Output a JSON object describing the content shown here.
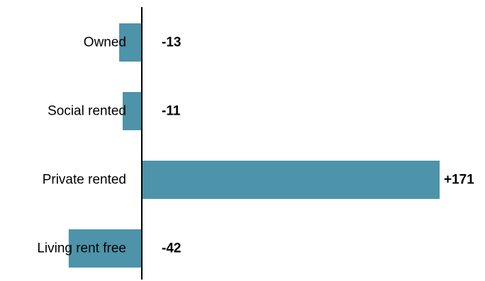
{
  "chart_data": {
    "type": "bar",
    "orientation": "horizontal",
    "categories": [
      "Owned",
      "Social rented",
      "Private rented",
      "Living rent free"
    ],
    "values": [
      -13,
      -11,
      171,
      -42
    ],
    "value_labels": [
      "-13",
      "-11",
      "+171",
      "-42"
    ],
    "title": "",
    "xlabel": "",
    "ylabel": "",
    "grid": false,
    "legend": "none",
    "bar_color": "#4d93aa",
    "axis_color": "#000000"
  }
}
